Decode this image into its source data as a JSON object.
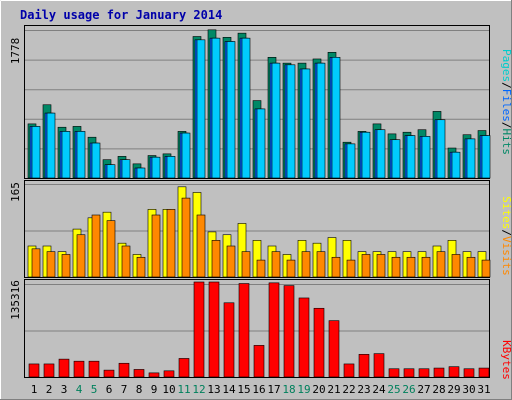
{
  "chart_data": [
    {
      "type": "bar",
      "title": "Daily usage for January 2014",
      "ytick": "1778",
      "legend": [
        {
          "label": "Pages",
          "color": "#00cccc"
        },
        {
          "label": "/",
          "color": "#000000"
        },
        {
          "label": "Files",
          "color": "#0066ff"
        },
        {
          "label": "/",
          "color": "#000000"
        },
        {
          "label": "Hits",
          "color": "#008866"
        }
      ],
      "ymax": 1778,
      "categories": [
        "1",
        "2",
        "3",
        "4",
        "5",
        "6",
        "7",
        "8",
        "9",
        "10",
        "11",
        "12",
        "13",
        "14",
        "15",
        "16",
        "17",
        "18",
        "19",
        "20",
        "21",
        "22",
        "23",
        "24",
        "25",
        "26",
        "27",
        "28",
        "29",
        "30",
        "31"
      ],
      "series": [
        {
          "name": "Hits",
          "color": "#008866",
          "values": [
            650,
            880,
            610,
            620,
            490,
            220,
            260,
            170,
            270,
            290,
            560,
            1700,
            1780,
            1690,
            1740,
            930,
            1450,
            1380,
            1380,
            1430,
            1510,
            430,
            560,
            650,
            530,
            550,
            580,
            800,
            360,
            520,
            570
          ]
        },
        {
          "name": "Files",
          "color": "#0066ff",
          "values": [
            620,
            780,
            560,
            560,
            420,
            160,
            220,
            120,
            250,
            260,
            540,
            1660,
            1680,
            1640,
            1680,
            830,
            1380,
            1360,
            1310,
            1380,
            1450,
            410,
            550,
            580,
            460,
            510,
            500,
            700,
            310,
            470,
            510
          ]
        },
        {
          "name": "Pages",
          "color": "#00ccff",
          "values": [
            620,
            780,
            560,
            560,
            420,
            160,
            220,
            120,
            250,
            260,
            540,
            1660,
            1680,
            1640,
            1680,
            830,
            1380,
            1360,
            1310,
            1380,
            1450,
            410,
            550,
            580,
            460,
            510,
            500,
            700,
            310,
            470,
            510
          ]
        }
      ]
    },
    {
      "type": "bar",
      "ytick": "165",
      "legend": [
        {
          "label": "Sites",
          "color": "#ffff00"
        },
        {
          "label": "/",
          "color": "#000000"
        },
        {
          "label": "Visits",
          "color": "#ff8800"
        }
      ],
      "ymax": 165,
      "categories": [
        "1",
        "2",
        "3",
        "4",
        "5",
        "6",
        "7",
        "8",
        "9",
        "10",
        "11",
        "12",
        "13",
        "14",
        "15",
        "16",
        "17",
        "18",
        "19",
        "20",
        "21",
        "22",
        "23",
        "24",
        "25",
        "26",
        "27",
        "28",
        "29",
        "30",
        "31"
      ],
      "series": [
        {
          "name": "Sites",
          "color": "#ffff00",
          "values": [
            55,
            55,
            45,
            85,
            105,
            115,
            60,
            40,
            120,
            120,
            160,
            150,
            80,
            75,
            95,
            65,
            55,
            40,
            65,
            60,
            70,
            65,
            45,
            45,
            45,
            45,
            45,
            55,
            65,
            45,
            45
          ]
        },
        {
          "name": "Visits",
          "color": "#ff8800",
          "values": [
            50,
            45,
            40,
            75,
            110,
            100,
            55,
            35,
            110,
            120,
            140,
            110,
            65,
            55,
            45,
            30,
            45,
            30,
            45,
            45,
            35,
            30,
            40,
            40,
            35,
            35,
            35,
            45,
            40,
            35,
            30
          ]
        }
      ]
    },
    {
      "type": "bar",
      "ytick": "135316",
      "legend": [
        {
          "label": "KBytes",
          "color": "#ff0000"
        }
      ],
      "ymax": 135316,
      "categories": [
        "1",
        "2",
        "3",
        "4",
        "5",
        "6",
        "7",
        "8",
        "9",
        "10",
        "11",
        "12",
        "13",
        "14",
        "15",
        "16",
        "17",
        "18",
        "19",
        "20",
        "21",
        "22",
        "23",
        "24",
        "25",
        "26",
        "27",
        "28",
        "29",
        "30",
        "31"
      ],
      "series": [
        {
          "name": "KBytes",
          "color": "#ff0000",
          "values": [
            19000,
            19000,
            26000,
            23000,
            23000,
            10000,
            20000,
            11000,
            6000,
            9000,
            27000,
            147000,
            145000,
            108000,
            136000,
            46000,
            137000,
            133000,
            115000,
            100000,
            82000,
            19000,
            33000,
            34000,
            12000,
            12000,
            12000,
            13000,
            15000,
            12000,
            13000
          ]
        }
      ]
    }
  ],
  "xaxis": {
    "labels": [
      "1",
      "2",
      "3",
      "4",
      "5",
      "6",
      "7",
      "8",
      "9",
      "10",
      "11",
      "12",
      "13",
      "14",
      "15",
      "16",
      "17",
      "18",
      "19",
      "20",
      "21",
      "22",
      "23",
      "24",
      "25",
      "26",
      "27",
      "28",
      "29",
      "30",
      "31"
    ],
    "weekend": [
      "4",
      "5",
      "11",
      "12",
      "18",
      "19",
      "25",
      "26"
    ],
    "weekday_color": "#000000",
    "weekend_color": "#00805c"
  }
}
